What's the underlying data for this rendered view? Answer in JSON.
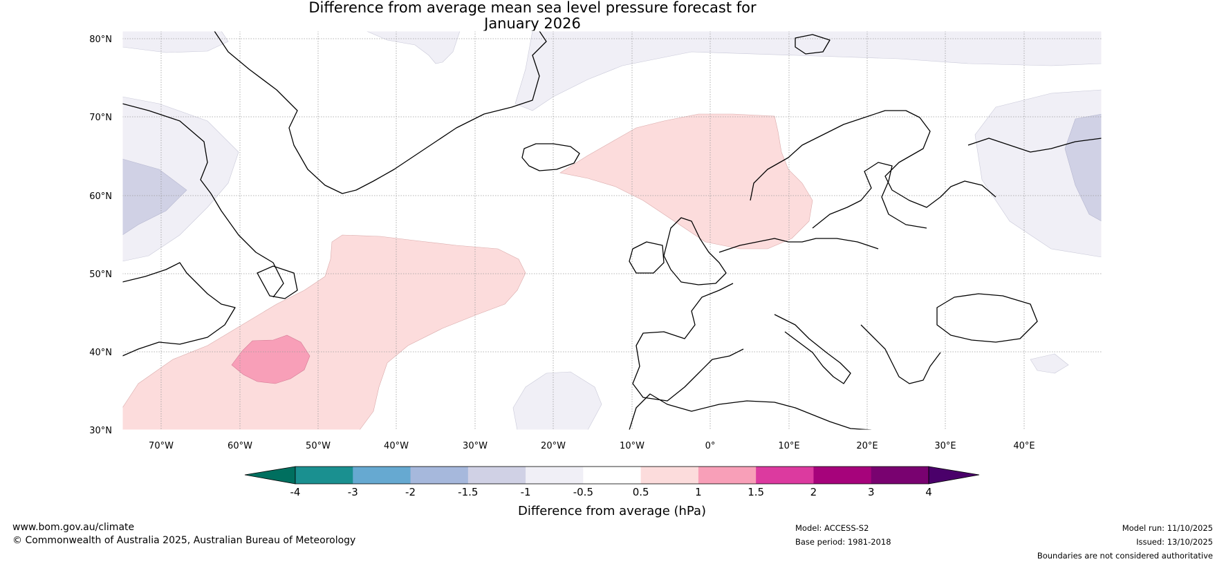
{
  "title_line1": "Difference from average mean sea level pressure forecast for",
  "title_line2": "January 2026",
  "map": {
    "lat_labels": [
      "80°N",
      "70°N",
      "60°N",
      "50°N",
      "40°N",
      "30°N"
    ],
    "lon_labels": [
      "70°W",
      "60°W",
      "50°W",
      "40°W",
      "30°W",
      "20°W",
      "10°W",
      "0°",
      "10°E",
      "20°E",
      "30°E",
      "40°E"
    ],
    "lat_range": [
      30,
      80
    ],
    "lon_range": [
      -75,
      50
    ]
  },
  "colorbar": {
    "ticks": [
      "-4",
      "-3",
      "-2",
      "-1.5",
      "-1",
      "-0.5",
      "0.5",
      "1",
      "1.5",
      "2",
      "3",
      "4"
    ],
    "colors": [
      "#1a9090",
      "#66a9d1",
      "#a6b8dc",
      "#d0d1e5",
      "#f0eff6",
      "#ffffff",
      "#fcdcdc",
      "#f89fb8",
      "#dc3a9f",
      "#a6037b",
      "#790270"
    ],
    "under_color": "#006f5f",
    "over_color": "#4a006a",
    "label": "Difference from average (hPa)"
  },
  "footer": {
    "url": "www.bom.gov.au/climate",
    "copyright": "© Commonwealth of Australia 2025, Australian Bureau of Meteorology",
    "model": "Model: ACCESS-S2",
    "base_period": "Base period: 1981-2018",
    "model_run": "Model run: 11/10/2025",
    "issued": "Issued: 13/10/2025",
    "disclaimer": "Boundaries are not considered authoritative"
  }
}
